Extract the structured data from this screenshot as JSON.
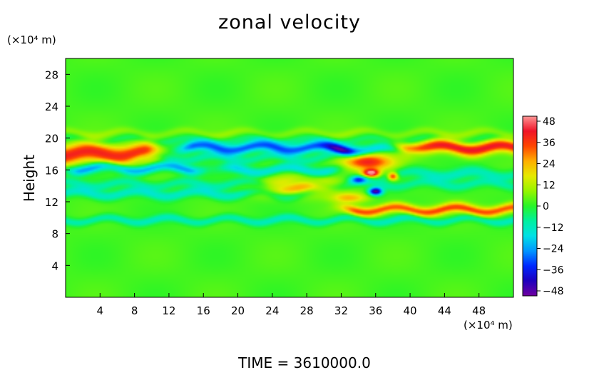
{
  "chart_data": {
    "type": "heatmap",
    "title": "zonal velocity",
    "ylabel": "Height",
    "y_unit": "(×10⁴ m)",
    "x_unit": "(×10⁴ m)",
    "xlim": [
      0,
      52
    ],
    "ylim": [
      0,
      30
    ],
    "x_ticks": [
      "4",
      "8",
      "12",
      "16",
      "20",
      "24",
      "28",
      "32",
      "36",
      "40",
      "44",
      "48"
    ],
    "y_ticks": [
      "4",
      "8",
      "12",
      "16",
      "20",
      "24",
      "28"
    ],
    "colorbar": {
      "range": [
        -48,
        48
      ],
      "ticks": [
        "48",
        "36",
        "24",
        "12",
        "0",
        "−12",
        "−24",
        "−36",
        "−48"
      ]
    },
    "footer": "TIME = 3610000.0",
    "features": [
      {
        "kind": "band",
        "y": 20.6,
        "value": 5,
        "width": 0.5,
        "x0": 0,
        "x1": 52
      },
      {
        "kind": "band",
        "y": 19.8,
        "value": -6,
        "width": 0.5,
        "x0": 0,
        "x1": 52
      },
      {
        "kind": "band",
        "y": 18.8,
        "value": -30,
        "width": 0.7,
        "x0": 15,
        "x1": 32
      },
      {
        "kind": "band",
        "y": 18.5,
        "value": -20,
        "width": 0.6,
        "x0": 32,
        "x1": 40
      },
      {
        "kind": "band",
        "y": 18.0,
        "value": 36,
        "width": 1.2,
        "x0": 0,
        "x1": 9
      },
      {
        "kind": "band",
        "y": 18.8,
        "value": 38,
        "width": 0.8,
        "x0": 40,
        "x1": 52
      },
      {
        "kind": "band",
        "y": 17.5,
        "value": -10,
        "width": 0.6,
        "x0": 9,
        "x1": 30
      },
      {
        "kind": "band",
        "y": 16.2,
        "value": -24,
        "width": 0.6,
        "x0": 2,
        "x1": 14
      },
      {
        "kind": "band",
        "y": 16.0,
        "value": -18,
        "width": 0.6,
        "x0": 20,
        "x1": 30
      },
      {
        "kind": "band",
        "y": 15.5,
        "value": -12,
        "width": 0.7,
        "x0": 38,
        "x1": 52
      },
      {
        "kind": "band",
        "y": 14.2,
        "value": -10,
        "width": 0.6,
        "x0": 0,
        "x1": 52
      },
      {
        "kind": "band",
        "y": 13.0,
        "value": -14,
        "width": 0.6,
        "x0": 0,
        "x1": 28
      },
      {
        "kind": "band",
        "y": 11.0,
        "value": 30,
        "width": 0.6,
        "x0": 34,
        "x1": 52
      },
      {
        "kind": "band",
        "y": 9.7,
        "value": -12,
        "width": 0.5,
        "x0": 0,
        "x1": 52
      },
      {
        "kind": "blob",
        "x": 35,
        "y": 17.0,
        "value": 36,
        "rx": 3.0,
        "ry": 1.0
      },
      {
        "kind": "blob",
        "x": 35.5,
        "y": 15.6,
        "value": 48,
        "rx": 1.0,
        "ry": 0.5
      },
      {
        "kind": "blob",
        "x": 38,
        "y": 15.2,
        "value": 40,
        "rx": 0.6,
        "ry": 0.5
      },
      {
        "kind": "blob",
        "x": 36,
        "y": 13.3,
        "value": -48,
        "rx": 0.8,
        "ry": 0.5
      },
      {
        "kind": "blob",
        "x": 33,
        "y": 12.5,
        "value": 20,
        "rx": 2.0,
        "ry": 0.6
      },
      {
        "kind": "blob",
        "x": 28,
        "y": 14.0,
        "value": 24,
        "rx": 4.0,
        "ry": 1.2
      },
      {
        "kind": "blob",
        "x": 24,
        "y": 13.5,
        "value": 12,
        "rx": 3.0,
        "ry": 1.0
      },
      {
        "kind": "blob",
        "x": 34,
        "y": 14.8,
        "value": -30,
        "rx": 1.0,
        "ry": 0.5
      }
    ]
  }
}
